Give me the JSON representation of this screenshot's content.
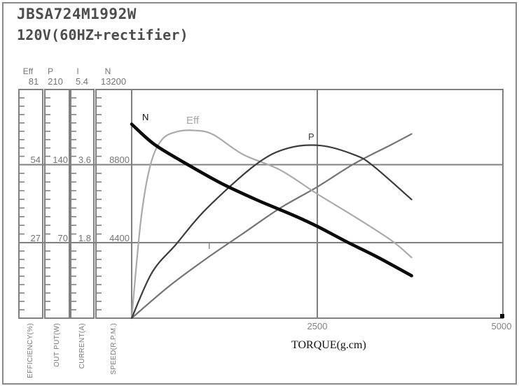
{
  "title": "JBSA724M1992W",
  "subtitle": "120V(60HZ+rectifier)",
  "left_axes": [
    {
      "name": "Eff",
      "unit": "EFFICIENCY(%)",
      "ticks": [
        "81",
        "54",
        "27"
      ]
    },
    {
      "name": "P",
      "unit": "OUT PUT(W)",
      "ticks": [
        "210",
        "140",
        "70"
      ]
    },
    {
      "name": "I",
      "unit": "CURRENT(A)",
      "ticks": [
        "5.4",
        "3.6",
        "1.8"
      ]
    },
    {
      "name": "N",
      "unit": "SPEED(R.P.M.)",
      "ticks": [
        "13200",
        "8800",
        "4400"
      ]
    }
  ],
  "x_axis": {
    "title": "TORQUE(g.cm)",
    "ticks": [
      "2500",
      "5000"
    ]
  },
  "curve_labels": {
    "n": "N",
    "eff": "Eff",
    "p": "P",
    "i": "I"
  },
  "colors": {
    "n_curve": "#0a0a0a",
    "p_curve": "#3c3c3c",
    "eff_curve": "#aaaaaa",
    "i_curve": "#737373",
    "grid": "#808080",
    "label_text": "#757575",
    "title_text": "#4d4d4d"
  },
  "chart_data": {
    "type": "line",
    "xlabel": "TORQUE(g.cm)",
    "xlim": [
      0,
      5000
    ],
    "x_ticks": [
      2500,
      5000
    ],
    "grid": "quadrant lines at x=2500 and at each y-axis 1/3 and 2/3 level",
    "legend_position": "labels on curves",
    "series": [
      {
        "name": "N",
        "ylabel": "SPEED(R.P.M.)",
        "ylim": [
          0,
          13200
        ],
        "yticks": [
          4400,
          8800,
          13200
        ],
        "points": [
          [
            0,
            11200
          ],
          [
            300,
            10050
          ],
          [
            700,
            9000
          ],
          [
            1200,
            7800
          ],
          [
            1700,
            6800
          ],
          [
            2200,
            5900
          ],
          [
            2500,
            5300
          ],
          [
            2900,
            4400
          ],
          [
            3300,
            3550
          ],
          [
            3770,
            2450
          ]
        ]
      },
      {
        "name": "Eff",
        "ylabel": "EFFICIENCY(%)",
        "ylim": [
          0,
          81
        ],
        "yticks": [
          27,
          54,
          81
        ],
        "points": [
          [
            0,
            0
          ],
          [
            125,
            35
          ],
          [
            250,
            54
          ],
          [
            400,
            63
          ],
          [
            600,
            66
          ],
          [
            850,
            66.5
          ],
          [
            1100,
            65
          ],
          [
            1500,
            58
          ],
          [
            2000,
            52.5
          ],
          [
            2500,
            44
          ],
          [
            3000,
            36
          ],
          [
            3500,
            27.5
          ],
          [
            3770,
            21.5
          ]
        ]
      },
      {
        "name": "P",
        "ylabel": "OUT PUT(W)",
        "ylim": [
          0,
          210
        ],
        "yticks": [
          70,
          140,
          210
        ],
        "points": [
          [
            0,
            0
          ],
          [
            275,
            42
          ],
          [
            600,
            68
          ],
          [
            1000,
            100
          ],
          [
            1670,
            141
          ],
          [
            2100,
            156
          ],
          [
            2550,
            158.5
          ],
          [
            3000,
            150
          ],
          [
            3250,
            140
          ],
          [
            3770,
            109
          ]
        ]
      },
      {
        "name": "I",
        "ylabel": "CURRENT(A)",
        "ylim": [
          0,
          5.4
        ],
        "yticks": [
          1.8,
          3.6,
          5.4
        ],
        "points": [
          [
            0,
            0
          ],
          [
            500,
            0.75
          ],
          [
            1000,
            1.4
          ],
          [
            1500,
            2.0
          ],
          [
            2000,
            2.6
          ],
          [
            2500,
            3.1
          ],
          [
            3000,
            3.65
          ],
          [
            3500,
            4.1
          ],
          [
            3770,
            4.35
          ]
        ]
      }
    ]
  }
}
